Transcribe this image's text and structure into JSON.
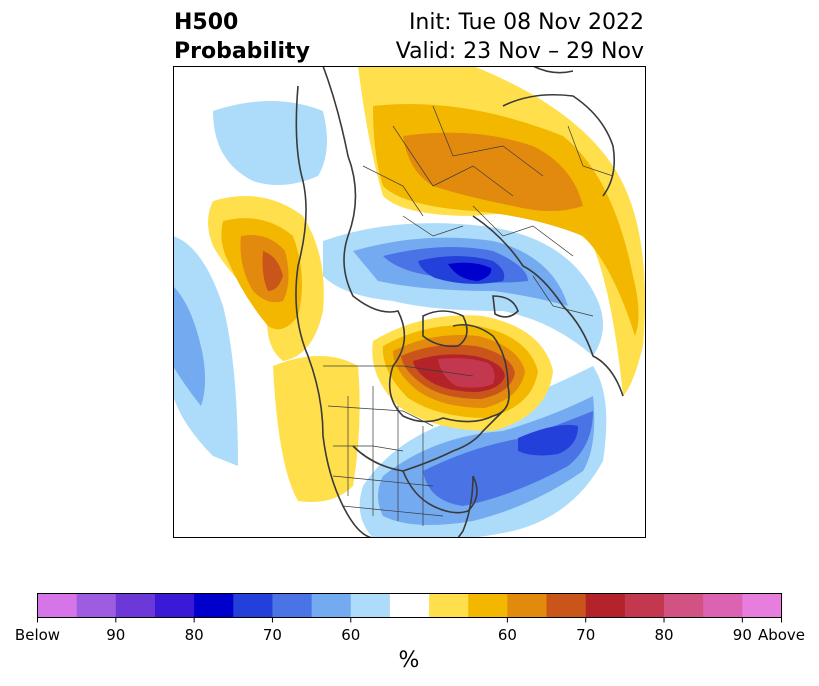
{
  "title": {
    "left_line1": "H500",
    "left_line2": "Probability",
    "init": "Init: Tue 08 Nov 2022",
    "valid": "Valid: 23 Nov – 29 Nov"
  },
  "colorbar": {
    "colors": [
      "#d575e8",
      "#9e5ce0",
      "#6d38d8",
      "#3a1ad6",
      "#0000cc",
      "#2440da",
      "#4a73e6",
      "#74aaf0",
      "#acdcfa",
      "#ffffff",
      "#ffe04c",
      "#f4b700",
      "#e18a0e",
      "#c9551a",
      "#b4232a",
      "#c4384f",
      "#d05383",
      "#dc63b1",
      "#e77ddc"
    ],
    "tick_labels": [
      "Below",
      "90",
      "80",
      "70",
      "60",
      "60",
      "70",
      "80",
      "90",
      "Above"
    ],
    "unit": "%"
  },
  "map": {
    "features": [
      "below-normal-height-anomaly",
      "above-normal-height-anomaly",
      "coastlines",
      "political-boundaries"
    ]
  }
}
